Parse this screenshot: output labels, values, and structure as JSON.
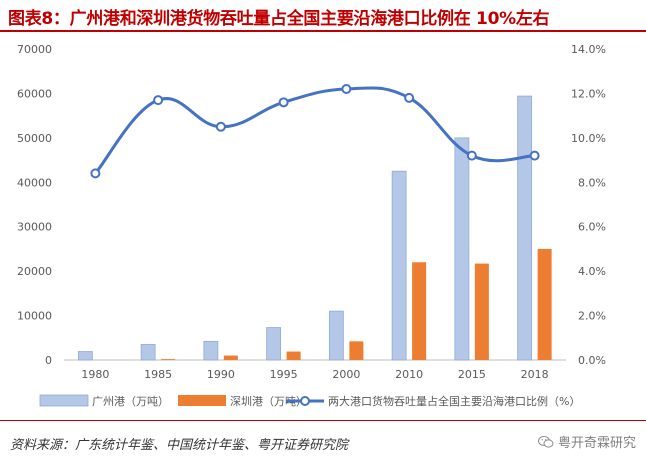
{
  "title": "图表8：广州港和深圳港货物吞吐量占全国主要沿海港口比例在 10%左右",
  "source": "资料来源：广东统计年鉴、中国统计年鉴、粤开证券研究院",
  "watermark": "粤开奇霖研究",
  "colors": {
    "title": "#c00000",
    "guangzhou_bar": "#b4c7e7",
    "guangzhou_bar_border": "#8faadc",
    "shenzhen_bar": "#ed7d31",
    "ratio_line": "#4472c4"
  },
  "chart_data": {
    "type": "bar",
    "categories": [
      "1980",
      "1985",
      "1990",
      "1995",
      "2000",
      "2010",
      "2015",
      "2018"
    ],
    "series": [
      {
        "name": "广州港（万吨）",
        "type": "bar",
        "axis": "left",
        "values": [
          1900,
          3500,
          4200,
          7300,
          11000,
          42500,
          50000,
          59400
        ]
      },
      {
        "name": "深圳港（万吨）",
        "type": "bar",
        "axis": "left",
        "values": [
          0,
          200,
          1000,
          1900,
          4200,
          22000,
          21700,
          25000
        ]
      },
      {
        "name": "两大港口货物吞吐量占全国主要沿海港口比例（%）",
        "type": "line",
        "axis": "right",
        "values": [
          8.4,
          11.7,
          10.5,
          11.6,
          12.2,
          11.8,
          9.2,
          9.2
        ]
      }
    ],
    "y_left": {
      "min": 0,
      "max": 70000,
      "ticks": [
        "0",
        "10000",
        "20000",
        "30000",
        "40000",
        "50000",
        "60000",
        "70000"
      ]
    },
    "y_right": {
      "min": 0,
      "max": 14,
      "ticks": [
        "0.0%",
        "2.0%",
        "4.0%",
        "6.0%",
        "8.0%",
        "10.0%",
        "12.0%",
        "14.0%"
      ]
    },
    "grid": false,
    "legend_position": "bottom"
  }
}
